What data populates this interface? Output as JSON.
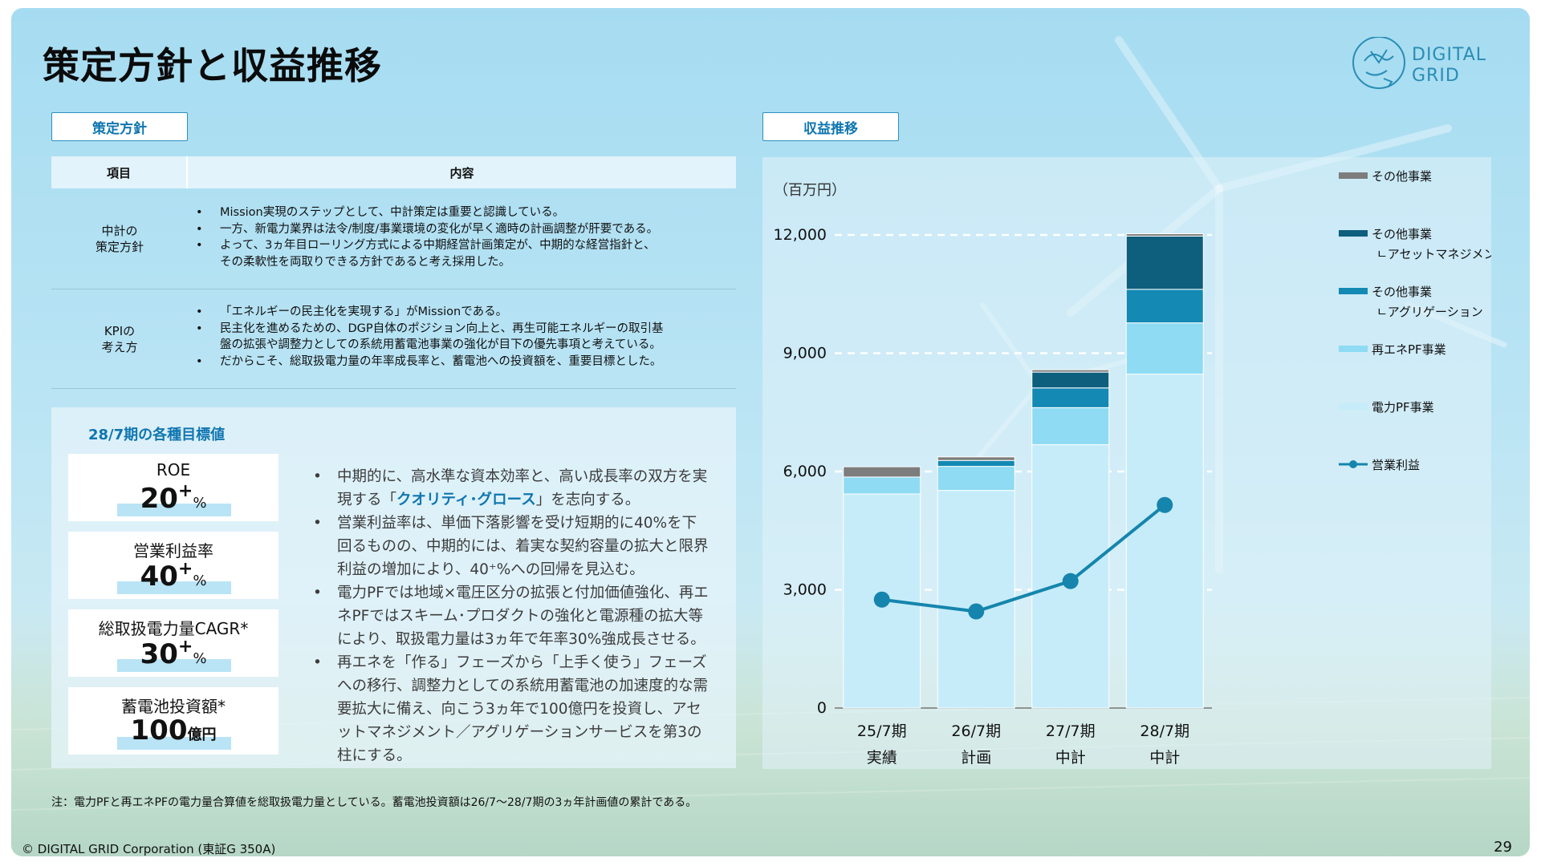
{
  "title": "策定方針と収益推移",
  "logo": {
    "line1": "DIGITAL",
    "line2": "GRID"
  },
  "policy": {
    "tab": "策定方針",
    "head_item": "項目",
    "head_content": "内容",
    "rows": [
      {
        "label": "中計の\n策定方針",
        "points": [
          "Mission実現のステップとして、中計策定は重要と認識している。",
          "一方、新電力業界は法令/制度/事業環境の変化が早く適時の計画調整が肝要である。",
          "よって、3ヵ年目ローリング方式による中期経営計画策定が、中期的な経営指針と、\nその柔軟性を両取りできる方針であると考え採用した。"
        ]
      },
      {
        "label": "KPIの\n考え方",
        "points": [
          "「エネルギーの民主化を実現する」がMissionである。",
          "民主化を進めるための、DGP自体のポジション向上と、再生可能エネルギーの取引基\n盤の拡張や調整力としての系統用蓄電池事業の強化が目下の優先事項と考えている。",
          "だからこそ、総取扱電力量の年率成長率と、蓄電池への投資額を、重要目標とした。"
        ]
      }
    ]
  },
  "targets": {
    "title": "28/7期の各種目標値",
    "kpis": [
      {
        "name": "ROE",
        "value": "20",
        "sup": "+",
        "unit": "%"
      },
      {
        "name": "営業利益率",
        "value": "40",
        "sup": "+",
        "unit": "%"
      },
      {
        "name": "総取扱電力量CAGR*",
        "value": "30",
        "sup": "+",
        "unit": "%"
      },
      {
        "name": "蓄電池投資額*",
        "value": "100",
        "sup": "",
        "unit": "億円"
      }
    ],
    "bullets": {
      "b1_pre": "中期的に、高水準な資本効率と、高い成長率の双方を実現する「",
      "b1_hl": "クオリティ･グロース",
      "b1_post": "」を志向する。",
      "b2": "営業利益率は、単価下落影響を受け短期的に40%を下回るものの、中期的には、着実な契約容量の拡大と限界利益の増加により、40⁺%への回帰を見込む。",
      "b3": "電力PFでは地域×電圧区分の拡張と付加価値強化、再エネPFではスキーム･プロダクトの強化と電源種の拡大等により、取扱電力量は3ヵ年で年率30%強成長させる。",
      "b4": "再エネを「作る」フェーズから「上手く使う」フェーズへの移行、調整力としての系統用蓄電池の加速度的な需要拡大に備え、向こう3ヵ年で100億円を投資し、アセットマネジメント／アグリゲーションサービスを第3の柱にする。"
    }
  },
  "revenue": {
    "tab": "収益推移"
  },
  "chart_data": {
    "type": "bar",
    "stacked": true,
    "unit_label": "（百万円）",
    "categories": [
      "25/7期",
      "26/7期",
      "27/7期",
      "28/7期"
    ],
    "category_sublabels": [
      "実績",
      "計画",
      "中計",
      "中計"
    ],
    "ylim": [
      0,
      12000
    ],
    "yticks": [
      0,
      3000,
      6000,
      9000,
      12000
    ],
    "ytick_labels": [
      "0",
      "3,000",
      "6,000",
      "9,000",
      "12,000"
    ],
    "grid": "dashed horizontal",
    "legend_position": "right",
    "series": [
      {
        "name": "電力PF事業",
        "color": "#c6ecfa",
        "values": [
          5430,
          5520,
          6680,
          8470
        ]
      },
      {
        "name": "再エネPF事業",
        "color": "#8edbf3",
        "values": [
          430,
          610,
          940,
          1300
        ]
      },
      {
        "name": "その他事業\nㄴアグリゲーション",
        "color": "#1389b3",
        "values": [
          0,
          150,
          500,
          850
        ]
      },
      {
        "name": "その他事業\nㄴアセットマネジメント",
        "color": "#0e5e7e",
        "values": [
          0,
          0,
          400,
          1350
        ]
      },
      {
        "name": "その他事業",
        "color": "#7d7d7d",
        "values": [
          260,
          90,
          60,
          60
        ]
      }
    ],
    "line": {
      "name": "営業利益",
      "color": "#1585ad",
      "values": [
        2750,
        2450,
        3220,
        5150
      ]
    }
  },
  "note": "注：電力PFと再エネPFの電力量合算値を総取扱電力量としている。蓄電池投資額は26/7～28/7期の3ヵ年計画値の累計である。",
  "footer": {
    "copyright": "© DIGITAL GRID Corporation (東証G 350A)",
    "page": "29"
  }
}
